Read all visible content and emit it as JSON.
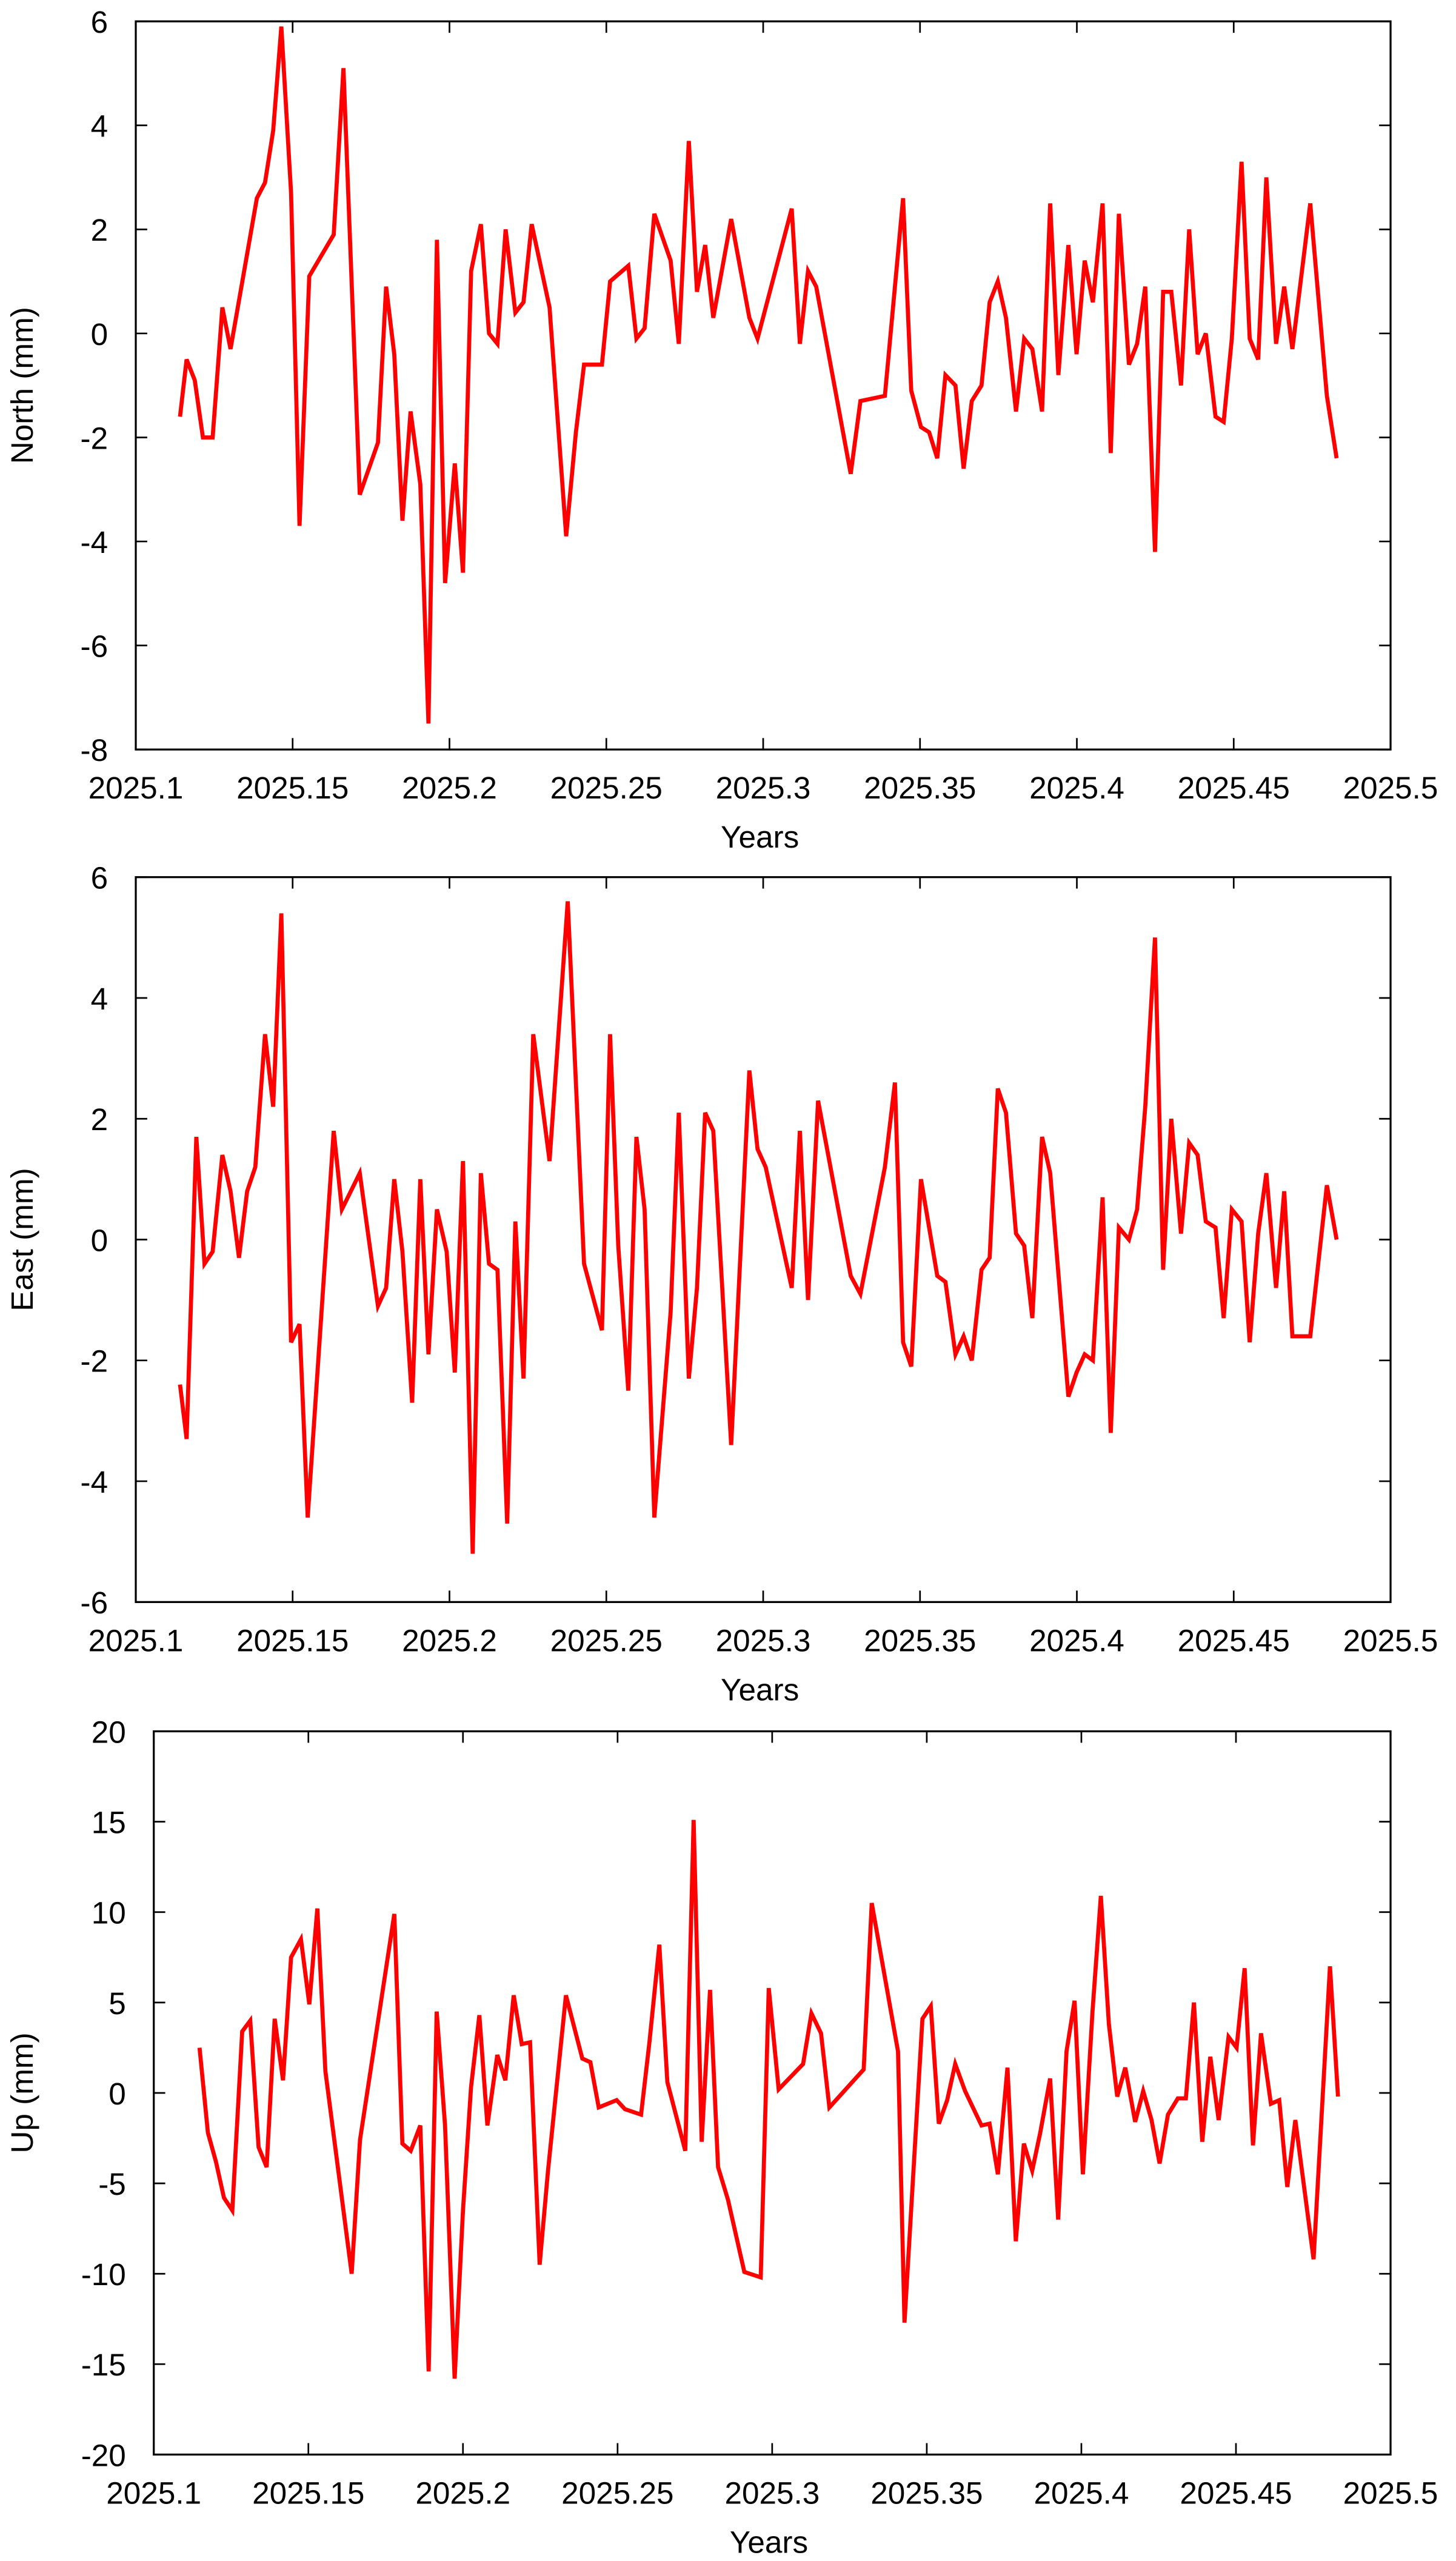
{
  "chart_data": [
    {
      "type": "line",
      "xlabel": "Years",
      "ylabel": "North (mm)",
      "xlim": [
        2025.1,
        2025.5
      ],
      "ylim": [
        -8,
        6
      ],
      "xticks": [
        2025.1,
        2025.15,
        2025.2,
        2025.25,
        2025.3,
        2025.35,
        2025.4,
        2025.45,
        2025.5
      ],
      "yticks": [
        -8,
        -6,
        -4,
        -2,
        0,
        2,
        4,
        6
      ],
      "x": [
        2025.1141,
        2025.1162,
        2025.1188,
        2025.1214,
        2025.1245,
        2025.1276,
        2025.1302,
        2025.1386,
        2025.1412,
        2025.1438,
        2025.1464,
        2025.1495,
        2025.1522,
        2025.1553,
        2025.1631,
        2025.1662,
        2025.1714,
        2025.1772,
        2025.1798,
        2025.1824,
        2025.185,
        2025.1876,
        2025.1907,
        2025.1933,
        2025.196,
        2025.1986,
        2025.2017,
        2025.2043,
        2025.2069,
        2025.21,
        2025.2126,
        2025.2153,
        2025.2179,
        2025.221,
        2025.2236,
        2025.2262,
        2025.2319,
        2025.2372,
        2025.2403,
        2025.2429,
        2025.2486,
        2025.2512,
        2025.257,
        2025.2596,
        2025.2622,
        2025.2653,
        2025.2705,
        2025.2731,
        2025.2763,
        2025.2789,
        2025.2815,
        2025.2841,
        2025.2898,
        2025.2956,
        2025.2982,
        2025.3091,
        2025.3117,
        2025.3143,
        2025.3169,
        2025.3279,
        2025.331,
        2025.3388,
        2025.3446,
        2025.3472,
        2025.3503,
        2025.3529,
        2025.3555,
        2025.3581,
        2025.3613,
        2025.3639,
        2025.3665,
        2025.3696,
        2025.3722,
        2025.3748,
        2025.3774,
        2025.3806,
        2025.3832,
        2025.3858,
        2025.3889,
        2025.3915,
        2025.3941,
        2025.3973,
        2025.3999,
        2025.4025,
        2025.4051,
        2025.4082,
        2025.4108,
        2025.4134,
        2025.4166,
        2025.4192,
        2025.4218,
        2025.4249,
        2025.4275,
        2025.4301,
        2025.4332,
        2025.4358,
        2025.4385,
        2025.4411,
        2025.4442,
        2025.4468,
        2025.4494,
        2025.4525,
        2025.4551,
        2025.4578,
        2025.4604,
        2025.4635,
        2025.4661,
        2025.4687,
        2025.4744,
        2025.4797,
        2025.4828
      ],
      "series": [
        {
          "color": "#ff0000",
          "values": [
            -1.6,
            -0.5,
            -0.9,
            -2.0,
            -2.0,
            0.5,
            -0.3,
            2.6,
            2.9,
            3.9,
            5.9,
            2.7,
            -3.7,
            1.1,
            1.9,
            5.1,
            -3.1,
            -2.1,
            0.9,
            -0.4,
            -3.6,
            -1.5,
            -2.9,
            -7.5,
            1.8,
            -4.8,
            -2.5,
            -4.6,
            1.2,
            2.1,
            0.0,
            -0.2,
            2.0,
            0.4,
            0.6,
            2.1,
            0.5,
            -3.9,
            -1.9,
            -0.6,
            -0.6,
            1.0,
            1.3,
            -0.1,
            0.1,
            2.3,
            1.4,
            -0.2,
            3.7,
            0.8,
            1.7,
            0.3,
            2.2,
            0.3,
            -0.1,
            2.4,
            -0.2,
            1.2,
            0.9,
            -2.7,
            -1.3,
            -1.2,
            2.6,
            -1.1,
            -1.8,
            -1.9,
            -2.4,
            -0.8,
            -1.0,
            -2.6,
            -1.3,
            -1.0,
            0.6,
            1.0,
            0.3,
            -1.5,
            -0.1,
            -0.3,
            -1.5,
            2.5,
            -0.8,
            1.7,
            -0.4,
            1.4,
            0.6,
            2.5,
            -2.3,
            2.3,
            -0.6,
            -0.2,
            0.9,
            -4.2,
            0.8,
            0.8,
            -1.0,
            2.0,
            -0.4,
            0.0,
            -1.6,
            -1.7,
            -0.1,
            3.3,
            -0.1,
            -0.5,
            3.0,
            -0.2,
            0.9,
            -0.3,
            2.5,
            -1.2,
            -2.4
          ]
        }
      ]
    },
    {
      "type": "line",
      "xlabel": "Years",
      "ylabel": "East (mm)",
      "xlim": [
        2025.1,
        2025.5
      ],
      "ylim": [
        -6,
        6
      ],
      "xticks": [
        2025.1,
        2025.15,
        2025.2,
        2025.25,
        2025.3,
        2025.35,
        2025.4,
        2025.45,
        2025.5
      ],
      "yticks": [
        -6,
        -4,
        -2,
        0,
        2,
        4,
        6
      ],
      "x": [
        2025.1141,
        2025.1162,
        2025.1193,
        2025.1219,
        2025.1245,
        2025.1276,
        2025.1302,
        2025.1329,
        2025.1355,
        2025.1381,
        2025.1412,
        2025.1438,
        2025.1464,
        2025.1495,
        2025.1522,
        2025.1548,
        2025.1631,
        2025.1657,
        2025.1714,
        2025.1772,
        2025.1798,
        2025.1824,
        2025.185,
        2025.1881,
        2025.1907,
        2025.1933,
        2025.196,
        2025.1991,
        2025.2017,
        2025.2043,
        2025.2074,
        2025.21,
        2025.2126,
        2025.2153,
        2025.2184,
        2025.221,
        2025.2236,
        2025.2267,
        2025.2319,
        2025.2377,
        2025.2429,
        2025.2486,
        2025.2512,
        2025.2538,
        2025.257,
        2025.2596,
        2025.2622,
        2025.2653,
        2025.2705,
        2025.2731,
        2025.2763,
        2025.2789,
        2025.2815,
        2025.2841,
        2025.2898,
        2025.2956,
        2025.2982,
        2025.3008,
        2025.3091,
        2025.3117,
        2025.3143,
        2025.3175,
        2025.3279,
        2025.331,
        2025.3388,
        2025.342,
        2025.3446,
        2025.3472,
        2025.3503,
        2025.3555,
        2025.3581,
        2025.3613,
        2025.3639,
        2025.3665,
        2025.3696,
        2025.3722,
        2025.3748,
        2025.3774,
        2025.3806,
        2025.3832,
        2025.3858,
        2025.3889,
        2025.3915,
        2025.3973,
        2025.3999,
        2025.4025,
        2025.4051,
        2025.4082,
        2025.4108,
        2025.4134,
        2025.4166,
        2025.4192,
        2025.4218,
        2025.4249,
        2025.4275,
        2025.4301,
        2025.4332,
        2025.4358,
        2025.4385,
        2025.4411,
        2025.4442,
        2025.4468,
        2025.4494,
        2025.4525,
        2025.4551,
        2025.4578,
        2025.4604,
        2025.4635,
        2025.4661,
        2025.4687,
        2025.4744,
        2025.4797,
        2025.4828
      ],
      "series": [
        {
          "color": "#ff0000",
          "values": [
            -2.4,
            -3.3,
            1.7,
            -0.4,
            -0.2,
            1.4,
            0.8,
            -0.3,
            0.8,
            1.2,
            3.4,
            2.2,
            5.4,
            -1.7,
            -1.4,
            -4.6,
            1.8,
            0.5,
            1.1,
            -1.1,
            -0.8,
            1.0,
            -0.2,
            -2.7,
            1.0,
            -1.9,
            0.5,
            -0.2,
            -2.2,
            1.3,
            -5.2,
            1.1,
            -0.4,
            -0.5,
            -4.7,
            0.3,
            -2.3,
            3.4,
            1.3,
            5.6,
            -0.4,
            -1.5,
            3.4,
            -0.1,
            -2.5,
            1.7,
            0.5,
            -4.6,
            -1.2,
            2.1,
            -2.3,
            -0.8,
            2.1,
            1.8,
            -3.4,
            2.8,
            1.5,
            1.2,
            -0.8,
            1.8,
            -1.0,
            2.3,
            -0.6,
            -0.9,
            1.2,
            2.6,
            -1.7,
            -2.1,
            1.0,
            -0.6,
            -0.7,
            -1.9,
            -1.6,
            -2.0,
            -0.5,
            -0.3,
            2.5,
            2.1,
            0.1,
            -0.1,
            -1.3,
            1.7,
            1.1,
            -2.6,
            -2.2,
            -1.9,
            -2.0,
            0.7,
            -3.2,
            0.2,
            0.0,
            0.5,
            2.2,
            5.0,
            -0.5,
            2.0,
            0.1,
            1.6,
            1.4,
            0.3,
            0.2,
            -1.3,
            0.5,
            0.3,
            -1.7,
            0.1,
            1.1,
            -0.8,
            0.8,
            -1.6,
            -1.6,
            0.9,
            0.0
          ]
        }
      ]
    },
    {
      "type": "line",
      "xlabel": "Years",
      "ylabel": "Up (mm)",
      "xlim": [
        2025.1,
        2025.5
      ],
      "ylim": [
        -20,
        20
      ],
      "xticks": [
        2025.1,
        2025.15,
        2025.2,
        2025.25,
        2025.3,
        2025.35,
        2025.4,
        2025.45,
        2025.5
      ],
      "yticks": [
        -20,
        -15,
        -10,
        -5,
        0,
        5,
        10,
        15,
        20
      ],
      "x": [
        2025.1148,
        2025.1175,
        2025.1201,
        2025.1227,
        2025.1254,
        2025.1286,
        2025.1312,
        2025.1339,
        2025.1365,
        2025.1391,
        2025.1418,
        2025.1444,
        2025.1476,
        2025.1503,
        2025.1529,
        2025.1555,
        2025.164,
        2025.1667,
        2025.1778,
        2025.1804,
        2025.1831,
        2025.1862,
        2025.1889,
        2025.1915,
        2025.1942,
        2025.1973,
        2025.2,
        2025.2026,
        2025.2053,
        2025.2079,
        2025.2111,
        2025.2137,
        2025.2164,
        2025.219,
        2025.2217,
        2025.2248,
        2025.2275,
        2025.2333,
        2025.2386,
        2025.2412,
        2025.2439,
        2025.2497,
        2025.2524,
        2025.2576,
        2025.2603,
        2025.2635,
        2025.2661,
        2025.2719,
        2025.2746,
        2025.2772,
        2025.2799,
        2025.2825,
        2025.2857,
        2025.291,
        2025.2963,
        2025.2989,
        2025.3021,
        2025.31,
        2025.3127,
        2025.3158,
        2025.3185,
        2025.3296,
        2025.3322,
        2025.3407,
        2025.3428,
        2025.3486,
        2025.3513,
        2025.3539,
        2025.3566,
        2025.3592,
        2025.3624,
        2025.3677,
        2025.3703,
        2025.373,
        2025.3761,
        2025.3788,
        2025.3814,
        2025.3841,
        2025.3867,
        2025.3899,
        2025.3925,
        2025.3952,
        2025.3978,
        2025.4005,
        2025.4036,
        2025.4063,
        2025.4089,
        2025.4116,
        2025.4142,
        2025.4174,
        2025.42,
        2025.4227,
        2025.4253,
        2025.428,
        2025.4312,
        2025.4338,
        2025.4364,
        2025.4391,
        2025.4417,
        2025.4444,
        2025.4476,
        2025.4502,
        2025.4528,
        2025.4555,
        2025.4581,
        2025.4613,
        2025.464,
        2025.4666,
        2025.4692,
        2025.4751,
        2025.4804,
        2025.483
      ],
      "series": [
        {
          "color": "#ff0000",
          "values": [
            2.5,
            -2.2,
            -3.8,
            -5.8,
            -6.5,
            3.4,
            4.0,
            -3.0,
            -4.1,
            4.1,
            0.7,
            7.5,
            8.5,
            4.9,
            10.2,
            1.2,
            -10.0,
            -2.6,
            9.9,
            -2.8,
            -3.2,
            -1.8,
            -15.4,
            4.5,
            -1.8,
            -15.8,
            -6.5,
            0.3,
            4.3,
            -1.8,
            2.1,
            0.7,
            5.4,
            2.7,
            2.8,
            -9.5,
            -4.3,
            5.4,
            1.9,
            1.7,
            -0.8,
            -0.4,
            -0.9,
            -1.2,
            2.8,
            8.2,
            0.6,
            -3.2,
            15.1,
            -2.7,
            5.7,
            -4.1,
            -5.9,
            -9.9,
            -10.2,
            5.8,
            0.2,
            1.6,
            4.4,
            3.3,
            -0.8,
            1.3,
            10.5,
            2.3,
            -12.7,
            4.1,
            4.8,
            -1.7,
            -0.4,
            1.6,
            0.1,
            -1.8,
            -1.7,
            -4.5,
            1.4,
            -8.2,
            -2.8,
            -4.3,
            -2.2,
            0.8,
            -7.0,
            2.3,
            5.1,
            -4.5,
            4.5,
            10.9,
            3.8,
            -0.2,
            1.4,
            -1.6,
            0.1,
            -1.5,
            -3.9,
            -1.2,
            -0.3,
            -0.3,
            5.0,
            -2.7,
            2.0,
            -1.5,
            3.1,
            2.5,
            6.9,
            -2.9,
            3.3,
            -0.6,
            -0.4,
            -5.2,
            -1.5,
            -9.2,
            7.0,
            -0.2
          ]
        }
      ]
    }
  ]
}
